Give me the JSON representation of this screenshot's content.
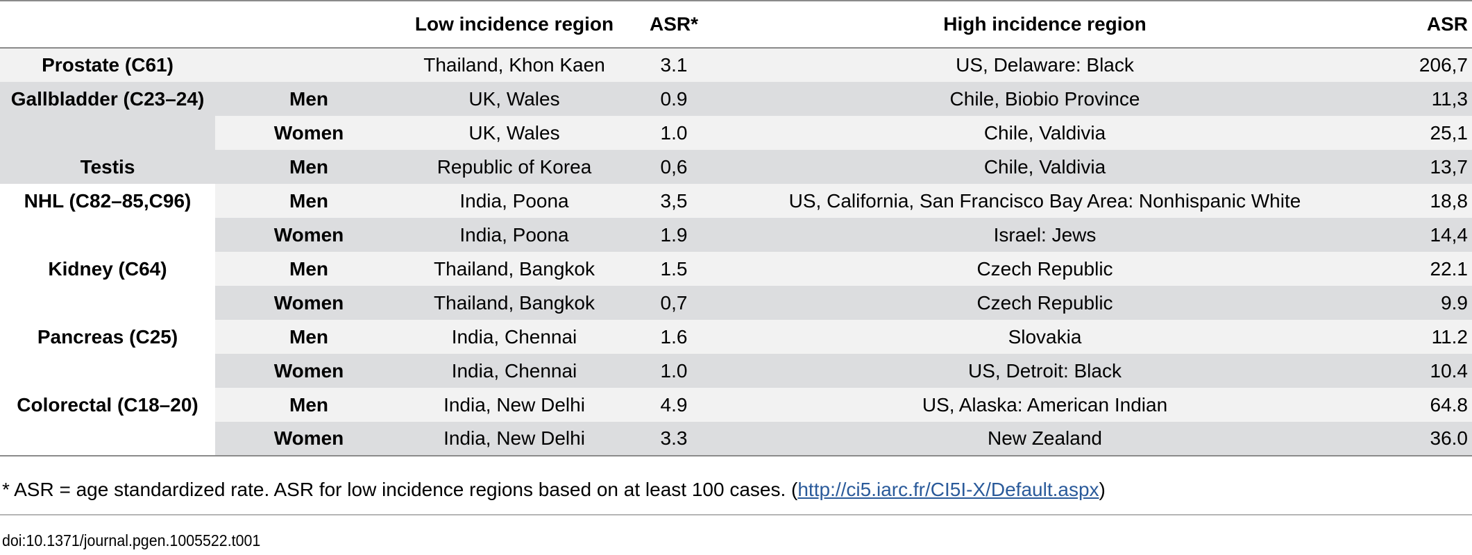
{
  "table": {
    "headers": [
      "",
      "",
      "Low incidence region",
      "ASR*",
      "High incidence region",
      "ASR"
    ],
    "rows": [
      [
        "Prostate (C61)",
        "",
        "Thailand, Khon Kaen",
        "3.1",
        "US, Delaware: Black",
        "206,7"
      ],
      [
        "Gallbladder (C23–24)",
        "Men",
        "UK, Wales",
        "0.9",
        "Chile, Biobio Province",
        "11,3"
      ],
      [
        "",
        "Women",
        "UK, Wales",
        "1.0",
        "Chile, Valdivia",
        "25,1"
      ],
      [
        "Testis",
        "Men",
        "Republic of Korea",
        "0,6",
        "Chile, Valdivia",
        "13,7"
      ],
      [
        "NHL (C82–85,C96)",
        "Men",
        "India, Poona",
        "3,5",
        "US, California, San Francisco Bay Area: Nonhispanic White",
        "18,8"
      ],
      [
        "",
        "Women",
        "India, Poona",
        "1.9",
        "Israel: Jews",
        "14,4"
      ],
      [
        "Kidney (C64)",
        "Men",
        "Thailand, Bangkok",
        "1.5",
        "Czech Republic",
        "22.1"
      ],
      [
        "",
        "Women",
        "Thailand, Bangkok",
        "0,7",
        "Czech Republic",
        "9.9"
      ],
      [
        "Pancreas (C25)",
        "Men",
        "India, Chennai",
        "1.6",
        "Slovakia",
        "11.2"
      ],
      [
        "",
        "Women",
        "India, Chennai",
        "1.0",
        "US, Detroit: Black",
        "10.4"
      ],
      [
        "Colorectal (C18–20)",
        "Men",
        "India, New Delhi",
        "4.9",
        "US, Alaska: American Indian",
        "64.8"
      ],
      [
        "",
        "Women",
        "India, New Delhi",
        "3.3",
        "New Zealand",
        "36.0"
      ]
    ]
  },
  "footnote": {
    "text": "* ASR = age standardized rate. ASR for low incidence regions based on at least 100 cases. (",
    "link": "http://ci5.iarc.fr/CI5I-X/Default.aspx",
    "close": ")"
  },
  "doi": "doi:10.1371/journal.pgen.1005522.t001"
}
